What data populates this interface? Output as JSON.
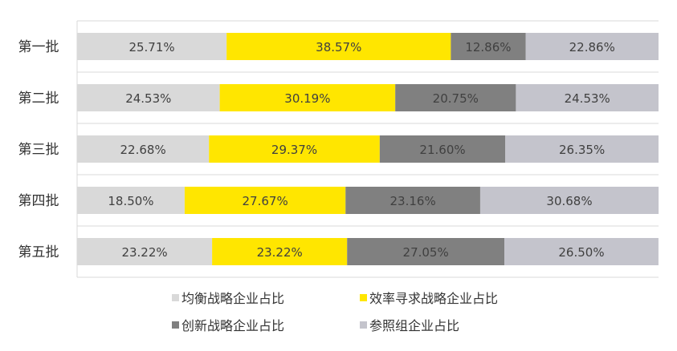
{
  "chart_data": {
    "type": "bar",
    "orientation": "horizontal",
    "stacked": "percent",
    "categories": [
      "第一批",
      "第二批",
      "第三批",
      "第四批",
      "第五批"
    ],
    "series": [
      {
        "name": "均衡战略企业占比",
        "color": "#d9d9d9",
        "values": [
          25.71,
          24.53,
          22.68,
          18.5,
          23.22
        ],
        "labels": [
          "25.71%",
          "24.53%",
          "22.68%",
          "18.50%",
          "23.22%"
        ]
      },
      {
        "name": "效率寻求战略企业占比",
        "color": "#ffe600",
        "values": [
          38.57,
          30.19,
          29.37,
          27.67,
          23.22
        ],
        "labels": [
          "38.57%",
          "30.19%",
          "29.37%",
          "27.67%",
          "23.22%"
        ]
      },
      {
        "name": "创新战略企业占比",
        "color": "#808080",
        "values": [
          12.86,
          20.75,
          21.6,
          23.16,
          27.05
        ],
        "labels": [
          "12.86%",
          "20.75%",
          "21.60%",
          "23.16%",
          "27.05%"
        ]
      },
      {
        "name": "参照组企业占比",
        "color": "#c4c4cc",
        "values": [
          22.86,
          24.53,
          26.35,
          30.68,
          26.5
        ],
        "labels": [
          "22.86%",
          "24.53%",
          "26.35%",
          "30.68%",
          "26.50%"
        ]
      }
    ],
    "xlim": [
      0,
      100
    ],
    "grid": true,
    "legend_position": "bottom"
  }
}
